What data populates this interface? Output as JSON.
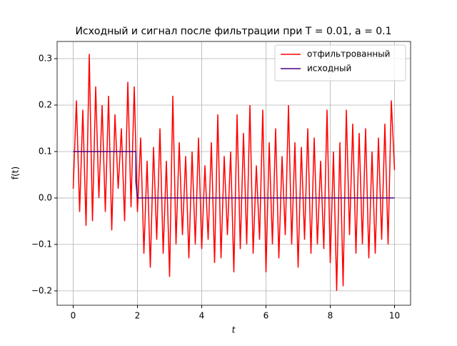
{
  "chart_data": {
    "type": "line",
    "title": "Исходный и сигнал после фильтрации при T = 0.01, a = 0.1",
    "x_label": "t",
    "y_label": "f(t)",
    "xlim": [
      -0.5,
      10.5
    ],
    "ylim": [
      -0.231,
      0.337
    ],
    "xticks": [
      0,
      2,
      4,
      6,
      8,
      10
    ],
    "yticks": [
      {
        "value": -0.2,
        "label": "−0.2"
      },
      {
        "value": -0.1,
        "label": "−0.1"
      },
      {
        "value": 0,
        "label": "0.0"
      },
      0.1,
      0.2,
      0.3
    ],
    "grid": true,
    "legend": "upper right",
    "series": [
      {
        "name": "отфильтрованный",
        "color": "#ff0000",
        "x": [
          0,
          0.1,
          0.2,
          0.3,
          0.4,
          0.5,
          0.6,
          0.7,
          0.8,
          0.9,
          1,
          1.1,
          1.2,
          1.3,
          1.4,
          1.5,
          1.6,
          1.7,
          1.8,
          1.9,
          2,
          2.1,
          2.2,
          2.3,
          2.4,
          2.5,
          2.6,
          2.7,
          2.8,
          2.9,
          3,
          3.1,
          3.2,
          3.3,
          3.4,
          3.5,
          3.6,
          3.7,
          3.8,
          3.9,
          4,
          4.1,
          4.2,
          4.3,
          4.4,
          4.5,
          4.6,
          4.7,
          4.8,
          4.9,
          5,
          5.1,
          5.2,
          5.3,
          5.4,
          5.5,
          5.6,
          5.7,
          5.8,
          5.9,
          6,
          6.1,
          6.2,
          6.3,
          6.4,
          6.5,
          6.6,
          6.7,
          6.8,
          6.9,
          7,
          7.1,
          7.2,
          7.3,
          7.4,
          7.5,
          7.6,
          7.7,
          7.8,
          7.9,
          8,
          8.1,
          8.2,
          8.3,
          8.4,
          8.5,
          8.6,
          8.7,
          8.8,
          8.9,
          9,
          9.1,
          9.2,
          9.3,
          9.4,
          9.5,
          9.6,
          9.7,
          9.8,
          9.9,
          10
        ],
        "values": [
          0.02,
          0.21,
          -0.03,
          0.19,
          -0.06,
          0.31,
          -0.05,
          0.24,
          0.0,
          0.2,
          -0.03,
          0.22,
          -0.07,
          0.18,
          0.02,
          0.15,
          -0.05,
          0.25,
          -0.02,
          0.24,
          -0.03,
          0.13,
          -0.12,
          0.08,
          -0.15,
          0.11,
          -0.09,
          0.15,
          -0.12,
          0.08,
          -0.17,
          0.22,
          -0.1,
          0.12,
          -0.08,
          0.09,
          -0.13,
          0.1,
          -0.1,
          0.13,
          -0.11,
          0.07,
          -0.09,
          0.12,
          -0.14,
          0.18,
          -0.13,
          0.09,
          -0.08,
          0.1,
          -0.16,
          0.18,
          -0.11,
          0.14,
          -0.1,
          0.2,
          -0.12,
          0.07,
          -0.09,
          0.19,
          -0.16,
          0.12,
          -0.1,
          0.15,
          -0.13,
          0.09,
          -0.08,
          0.2,
          -0.1,
          0.12,
          -0.15,
          0.11,
          -0.09,
          0.15,
          -0.12,
          0.13,
          -0.1,
          0.08,
          -0.11,
          0.19,
          -0.14,
          0.1,
          -0.2,
          0.12,
          -0.19,
          0.19,
          -0.08,
          0.16,
          -0.12,
          0.14,
          -0.1,
          0.15,
          -0.13,
          0.1,
          -0.12,
          0.13,
          -0.09,
          0.16,
          -0.1,
          0.21,
          0.06
        ]
      },
      {
        "name": "исходный",
        "color": "#4b0082",
        "x": [
          0,
          1.95,
          1.95,
          2,
          10
        ],
        "values": [
          0.1,
          0.1,
          0.035,
          0,
          0
        ]
      }
    ]
  }
}
